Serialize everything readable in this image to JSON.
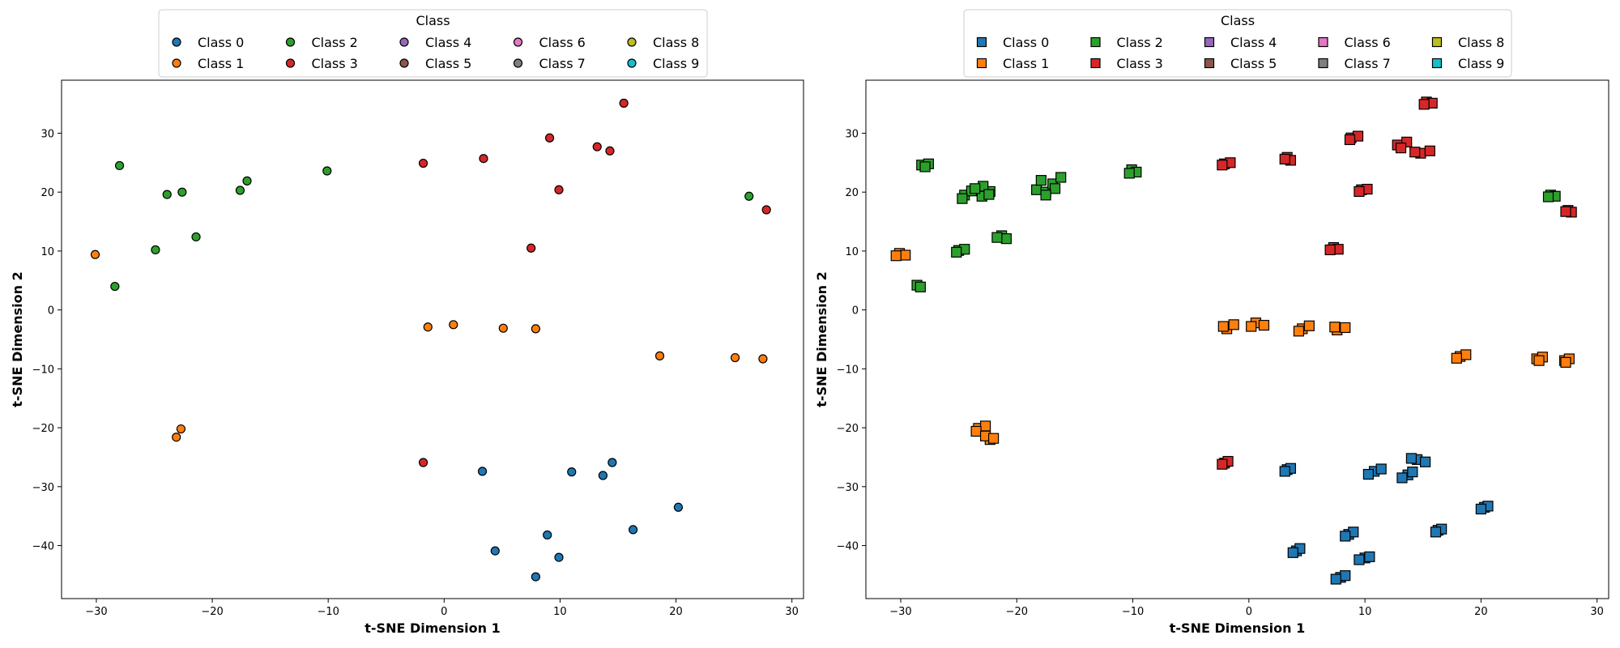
{
  "chart_data": [
    {
      "type": "scatter",
      "marker": "circle",
      "legend_title": "Class",
      "legend_placement": "top-center",
      "xlabel": "t-SNE Dimension 1",
      "ylabel": "t-SNE Dimension 2",
      "xlim": [
        -33,
        31
      ],
      "ylim": [
        -49,
        39
      ],
      "xticks": [
        -30,
        -20,
        -10,
        0,
        10,
        20,
        30
      ],
      "yticks": [
        -40,
        -30,
        -20,
        -10,
        0,
        10,
        20,
        30
      ],
      "series": [
        {
          "name": "Class 0",
          "color": "#1f77b4",
          "points": [
            [
              3.3,
              -27.4
            ],
            [
              11.0,
              -27.5
            ],
            [
              13.7,
              -28.1
            ],
            [
              14.5,
              -25.9
            ],
            [
              20.2,
              -33.5
            ],
            [
              16.3,
              -37.3
            ],
            [
              8.9,
              -38.2
            ],
            [
              9.9,
              -42.0
            ],
            [
              4.4,
              -40.9
            ],
            [
              7.9,
              -45.3
            ]
          ]
        },
        {
          "name": "Class 1",
          "color": "#ff7f0e",
          "points": [
            [
              -30.1,
              9.4
            ],
            [
              -1.4,
              -2.9
            ],
            [
              0.8,
              -2.5
            ],
            [
              5.1,
              -3.1
            ],
            [
              7.9,
              -3.2
            ],
            [
              18.6,
              -7.8
            ],
            [
              25.1,
              -8.1
            ],
            [
              27.5,
              -8.3
            ],
            [
              -22.7,
              -20.2
            ],
            [
              -23.1,
              -21.6
            ]
          ]
        },
        {
          "name": "Class 2",
          "color": "#2ca02c",
          "points": [
            [
              -28.0,
              24.5
            ],
            [
              -23.9,
              19.6
            ],
            [
              -22.6,
              20.0
            ],
            [
              -17.6,
              20.3
            ],
            [
              -17.0,
              21.9
            ],
            [
              -10.1,
              23.6
            ],
            [
              -24.9,
              10.2
            ],
            [
              -21.4,
              12.4
            ],
            [
              -28.4,
              4.0
            ],
            [
              26.3,
              19.3
            ]
          ]
        },
        {
          "name": "Class 3",
          "color": "#d62728",
          "points": [
            [
              15.5,
              35.1
            ],
            [
              9.1,
              29.2
            ],
            [
              13.2,
              27.7
            ],
            [
              14.3,
              27.0
            ],
            [
              3.4,
              25.7
            ],
            [
              -1.8,
              24.9
            ],
            [
              9.9,
              20.4
            ],
            [
              27.8,
              17.0
            ],
            [
              7.5,
              10.5
            ],
            [
              -1.8,
              -25.9
            ]
          ]
        },
        {
          "name": "Class 4",
          "color": "#9467bd",
          "points": []
        },
        {
          "name": "Class 5",
          "color": "#8c564b",
          "points": []
        },
        {
          "name": "Class 6",
          "color": "#e377c2",
          "points": []
        },
        {
          "name": "Class 7",
          "color": "#7f7f7f",
          "points": []
        },
        {
          "name": "Class 8",
          "color": "#bcbd22",
          "points": []
        },
        {
          "name": "Class 9",
          "color": "#17becf",
          "points": []
        }
      ]
    },
    {
      "type": "scatter",
      "marker": "square",
      "legend_title": "Class",
      "legend_placement": "top-center",
      "xlabel": "t-SNE Dimension 1",
      "ylabel": "t-SNE Dimension 2",
      "xlim": [
        -33,
        31
      ],
      "ylim": [
        -49,
        39
      ],
      "xticks": [
        -30,
        -20,
        -10,
        0,
        10,
        20,
        30
      ],
      "yticks": [
        -40,
        -30,
        -20,
        -10,
        0,
        10,
        20,
        30
      ],
      "series": [
        {
          "name": "Class 0",
          "color": "#1f77b4",
          "points": [
            [
              3.3,
              -27.1
            ],
            [
              3.6,
              -26.9
            ],
            [
              3.1,
              -27.4
            ],
            [
              10.8,
              -27.4
            ],
            [
              11.4,
              -27.0
            ],
            [
              10.3,
              -27.9
            ],
            [
              13.7,
              -28.0
            ],
            [
              14.1,
              -27.5
            ],
            [
              13.2,
              -28.5
            ],
            [
              14.5,
              -25.4
            ],
            [
              15.2,
              -25.8
            ],
            [
              14.0,
              -25.2
            ],
            [
              20.3,
              -33.5
            ],
            [
              20.6,
              -33.3
            ],
            [
              20.0,
              -33.8
            ],
            [
              16.3,
              -37.4
            ],
            [
              16.6,
              -37.2
            ],
            [
              16.1,
              -37.7
            ],
            [
              8.6,
              -38.1
            ],
            [
              9.0,
              -37.7
            ],
            [
              8.3,
              -38.4
            ],
            [
              10.0,
              -42.1
            ],
            [
              10.4,
              -41.9
            ],
            [
              9.5,
              -42.4
            ],
            [
              4.1,
              -40.9
            ],
            [
              4.4,
              -40.5
            ],
            [
              3.8,
              -41.2
            ],
            [
              7.9,
              -45.4
            ],
            [
              8.3,
              -45.1
            ],
            [
              7.5,
              -45.7
            ]
          ]
        },
        {
          "name": "Class 1",
          "color": "#ff7f0e",
          "points": [
            [
              -30.1,
              9.6
            ],
            [
              -29.6,
              9.3
            ],
            [
              -30.4,
              9.2
            ],
            [
              -1.9,
              -3.2
            ],
            [
              -1.3,
              -2.5
            ],
            [
              -2.2,
              -2.8
            ],
            [
              0.6,
              -2.2
            ],
            [
              1.3,
              -2.6
            ],
            [
              0.2,
              -2.8
            ],
            [
              4.6,
              -3.2
            ],
            [
              5.2,
              -2.7
            ],
            [
              4.3,
              -3.6
            ],
            [
              7.6,
              -3.4
            ],
            [
              8.3,
              -3.0
            ],
            [
              7.4,
              -2.9
            ],
            [
              18.2,
              -7.9
            ],
            [
              18.7,
              -7.6
            ],
            [
              17.9,
              -8.2
            ],
            [
              24.8,
              -8.3
            ],
            [
              25.3,
              -8.0
            ],
            [
              25.0,
              -8.6
            ],
            [
              27.2,
              -8.6
            ],
            [
              27.6,
              -8.3
            ],
            [
              27.3,
              -8.9
            ],
            [
              -23.3,
              -20.1
            ],
            [
              -22.7,
              -19.7
            ],
            [
              -23.5,
              -20.6
            ],
            [
              -22.3,
              -22.0
            ],
            [
              -22.7,
              -21.4
            ],
            [
              -22.0,
              -21.8
            ]
          ]
        },
        {
          "name": "Class 2",
          "color": "#2ca02c",
          "points": [
            [
              -28.2,
              24.6
            ],
            [
              -27.6,
              24.8
            ],
            [
              -27.9,
              24.3
            ],
            [
              -24.5,
              19.5
            ],
            [
              -23.9,
              20.2
            ],
            [
              -24.7,
              18.9
            ],
            [
              -23.0,
              19.3
            ],
            [
              -22.3,
              20.1
            ],
            [
              -22.9,
              21.0
            ],
            [
              -22.4,
              19.6
            ],
            [
              -23.6,
              20.6
            ],
            [
              -18.3,
              20.4
            ],
            [
              -17.5,
              20.0
            ],
            [
              -17.9,
              22.0
            ],
            [
              -16.9,
              21.4
            ],
            [
              -16.2,
              22.5
            ],
            [
              -16.7,
              20.6
            ],
            [
              -17.5,
              19.5
            ],
            [
              -10.1,
              23.8
            ],
            [
              -9.7,
              23.4
            ],
            [
              -10.3,
              23.2
            ],
            [
              -25.0,
              10.1
            ],
            [
              -24.5,
              10.3
            ],
            [
              -25.2,
              9.8
            ],
            [
              -21.3,
              12.6
            ],
            [
              -20.9,
              12.1
            ],
            [
              -21.7,
              12.3
            ],
            [
              -28.6,
              4.2
            ],
            [
              -28.3,
              3.9
            ],
            [
              26.0,
              19.5
            ],
            [
              26.4,
              19.3
            ],
            [
              25.8,
              19.2
            ]
          ]
        },
        {
          "name": "Class 3",
          "color": "#d62728",
          "points": [
            [
              15.3,
              35.3
            ],
            [
              15.8,
              35.1
            ],
            [
              15.1,
              34.9
            ],
            [
              8.8,
              29.2
            ],
            [
              9.4,
              29.5
            ],
            [
              8.7,
              28.9
            ],
            [
              12.8,
              28.0
            ],
            [
              13.6,
              28.5
            ],
            [
              13.1,
              27.5
            ],
            [
              14.8,
              26.6
            ],
            [
              15.6,
              27.0
            ],
            [
              14.3,
              26.8
            ],
            [
              3.3,
              25.9
            ],
            [
              3.6,
              25.4
            ],
            [
              3.1,
              25.6
            ],
            [
              -2.1,
              24.8
            ],
            [
              -1.6,
              25.0
            ],
            [
              -2.3,
              24.6
            ],
            [
              9.7,
              20.4
            ],
            [
              10.2,
              20.5
            ],
            [
              9.5,
              20.1
            ],
            [
              27.5,
              16.9
            ],
            [
              27.8,
              16.6
            ],
            [
              27.3,
              16.7
            ],
            [
              7.3,
              10.6
            ],
            [
              7.7,
              10.3
            ],
            [
              7.0,
              10.2
            ],
            [
              -2.1,
              -26.0
            ],
            [
              -1.8,
              -25.7
            ],
            [
              -2.3,
              -26.2
            ]
          ]
        },
        {
          "name": "Class 4",
          "color": "#9467bd",
          "points": []
        },
        {
          "name": "Class 5",
          "color": "#8c564b",
          "points": []
        },
        {
          "name": "Class 6",
          "color": "#e377c2",
          "points": []
        },
        {
          "name": "Class 7",
          "color": "#7f7f7f",
          "points": []
        },
        {
          "name": "Class 8",
          "color": "#bcbd22",
          "points": []
        },
        {
          "name": "Class 9",
          "color": "#17becf",
          "points": []
        }
      ]
    }
  ]
}
